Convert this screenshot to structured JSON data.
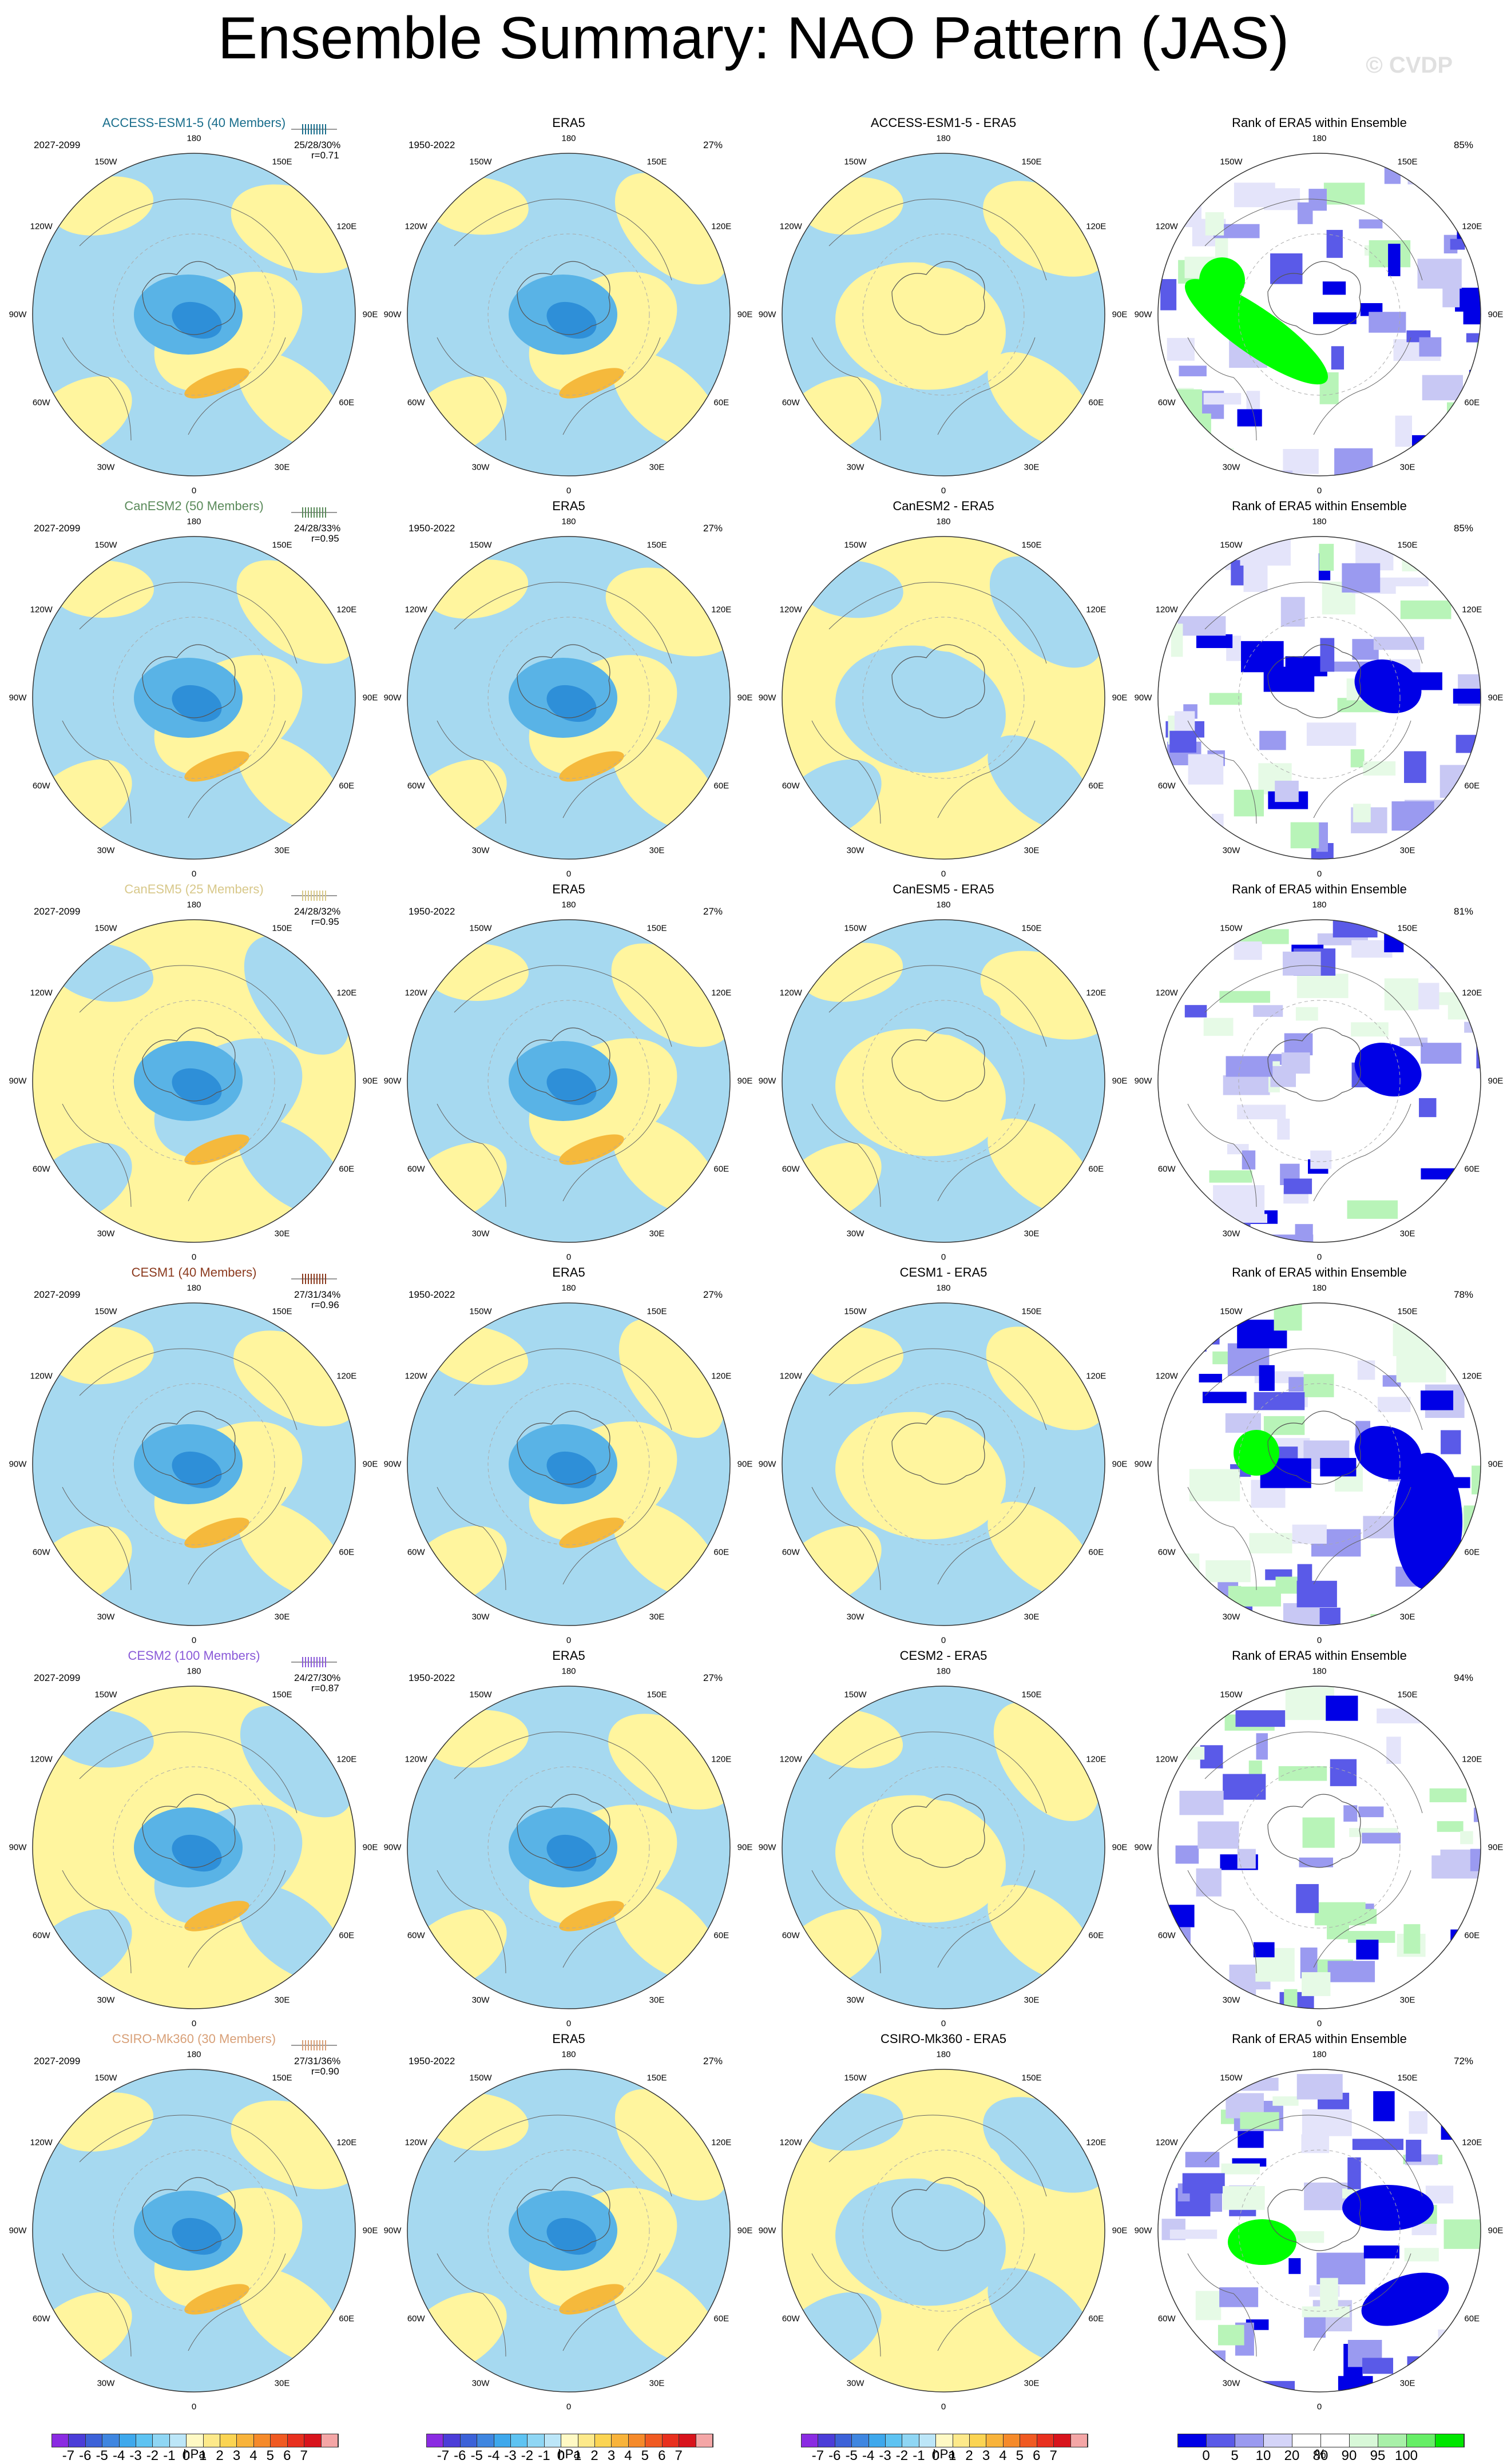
{
  "title": "Ensemble Summary: NAO Pattern (JAS)",
  "watermark": "© CVDP",
  "colors": {
    "ocean_blue": "#a6d9f0",
    "light_yellow": "#fff59e",
    "mid_blue": "#59b3e6",
    "dark_blue": "#2e8fd8",
    "orange": "#f5b93c",
    "rank_green": "#00ff00",
    "rank_blue": "#0000e6"
  },
  "period_model": "2027-2099",
  "period_obs": "1950-2022",
  "obs_name": "ERA5",
  "rank_title": "Rank of ERA5 within Ensemble",
  "obs_pct": "27%",
  "lon_labels": [
    "180",
    "150E",
    "120E",
    "90E",
    "60E",
    "30E",
    "0",
    "30W",
    "60W",
    "90W",
    "120W",
    "150W"
  ],
  "rows": [
    {
      "model": "ACCESS-ESM1-5 (40 Members)",
      "color": "#1a6e8c",
      "stats": "25/28/30%",
      "r": "r=0.71",
      "diff_title": "ACCESS-ESM1-5 - ERA5",
      "rank_pct": "85%"
    },
    {
      "model": "CanESM2 (50 Members)",
      "color": "#5a8a5a",
      "stats": "24/28/33%",
      "r": "r=0.95",
      "diff_title": "CanESM2 - ERA5",
      "rank_pct": "85%"
    },
    {
      "model": "CanESM5 (25 Members)",
      "color": "#d8c88a",
      "stats": "24/28/32%",
      "r": "r=0.95",
      "diff_title": "CanESM5 - ERA5",
      "rank_pct": "81%"
    },
    {
      "model": "CESM1 (40 Members)",
      "color": "#8b3a1e",
      "stats": "27/31/34%",
      "r": "r=0.96",
      "diff_title": "CESM1 - ERA5",
      "rank_pct": "78%"
    },
    {
      "model": "CESM2 (100 Members)",
      "color": "#8a5ad8",
      "stats": "24/27/30%",
      "r": "r=0.87",
      "diff_title": "CESM2 - ERA5",
      "rank_pct": "94%"
    },
    {
      "model": "CSIRO-Mk360 (30 Members)",
      "color": "#d8a078",
      "stats": "27/31/36%",
      "r": "r=0.90",
      "diff_title": "CSIRO-Mk360 - ERA5",
      "rank_pct": "72%"
    }
  ],
  "colorbars": {
    "hpa": {
      "units": "hPa",
      "ticks": [
        "-7",
        "-6",
        "-5",
        "-4",
        "-3",
        "-2",
        "-1",
        "0",
        "1",
        "2",
        "3",
        "4",
        "5",
        "6",
        "7"
      ],
      "colors": [
        "#8a2be2",
        "#4b3dd8",
        "#3c62d8",
        "#3f86e0",
        "#3ea8ec",
        "#5ec3f2",
        "#8fd6f4",
        "#bce6f8",
        "#fff9c4",
        "#fde98a",
        "#fbd452",
        "#f8b33a",
        "#f58a2a",
        "#f05a22",
        "#e8301e",
        "#d8141c",
        "#f4a6a6"
      ]
    },
    "rank": {
      "units": "%",
      "ticks": [
        "0",
        "5",
        "10",
        "20",
        "80",
        "90",
        "95",
        "100"
      ],
      "colors": [
        "#0000e6",
        "#5a5ae8",
        "#9a9af0",
        "#d4d4f8",
        "#ffffff",
        "#ffffff",
        "#d8f8d8",
        "#a8f0a8",
        "#66ee66",
        "#00e600"
      ]
    }
  }
}
